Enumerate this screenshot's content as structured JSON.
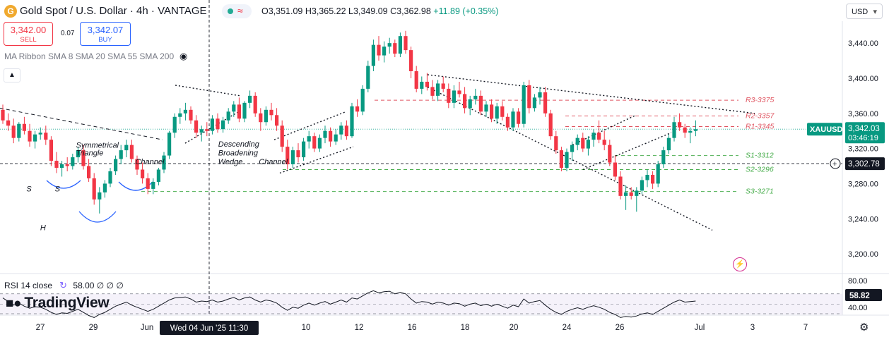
{
  "header": {
    "symbol_logo": "G",
    "symbol_title": "Gold Spot / U.S. Dollar · 4h · VANTAGE",
    "ohlc": "O3,351.09 H3,365.22 L3,349.09 C3,362.98",
    "change": "+11.89 (+0.35%)",
    "currency": "USD",
    "sell_price": "3,342.00",
    "sell_label": "SELL",
    "spread": "0.07",
    "buy_price": "3,342.07",
    "buy_label": "BUY",
    "indicator_label": "MA Ribbon SMA 8 SMA 20 SMA 55 SMA 200",
    "rsi_label": "RSI 14 close",
    "rsi_value": "58.00",
    "rsi_extra": "∅ ∅ ∅",
    "brand": "TradingView"
  },
  "icons": [
    "eye-icon",
    "chevron-up-icon",
    "gear-icon",
    "flash-icon",
    "plus-circle-icon",
    "green-dot-icon",
    "wave-icon"
  ],
  "colors": {
    "up": "#089981",
    "down": "#f23645",
    "resistance": "#e05561",
    "support": "#4caf50",
    "accent": "#2962ff"
  },
  "chart_data": {
    "type": "candlestick",
    "price_axis": {
      "ticks": [
        3440,
        3400,
        3360,
        3320,
        3280,
        3240,
        3200
      ],
      "tick_labels": [
        "3,440.00",
        "3,400.00",
        "3,360.00",
        "3,320.00",
        "3,280.00",
        "3,240.00",
        "3,200.00"
      ],
      "range": [
        3180,
        3465
      ]
    },
    "time_axis": {
      "labels": [
        "27",
        "29",
        "Jun",
        "10",
        "12",
        "16",
        "18",
        "20",
        "24",
        "26",
        "Jul",
        "3",
        "7"
      ],
      "crosshair_label": "Wed 04 Jun '25   11:30"
    },
    "price_badges": {
      "symbol": "XAUUSD",
      "last_price": "3,342.03",
      "countdown": "03:46:19",
      "crosshair_price": "3,302.78"
    },
    "levels": [
      {
        "label": "R3-3375",
        "value": 3375,
        "kind": "resistance"
      },
      {
        "label": "R2-3357",
        "value": 3357,
        "kind": "resistance"
      },
      {
        "label": "R1-3345",
        "value": 3345,
        "kind": "resistance"
      },
      {
        "label": "S1-3312",
        "value": 3312,
        "kind": "support"
      },
      {
        "label": "S2-3296",
        "value": 3296,
        "kind": "support"
      },
      {
        "label": "S3-3271",
        "value": 3271,
        "kind": "support"
      }
    ],
    "annotations": [
      {
        "text": "Symmetrical",
        "time": 0.09,
        "price": 3321
      },
      {
        "text": "Triangle",
        "time": 0.09,
        "price": 3312
      },
      {
        "text": "Channel",
        "time": 0.163,
        "price": 3302
      },
      {
        "text": "Descending",
        "time": 0.265,
        "price": 3322
      },
      {
        "text": "Broadening",
        "time": 0.265,
        "price": 3312
      },
      {
        "text": "Wedge",
        "time": 0.265,
        "price": 3302
      },
      {
        "text": "Channel",
        "time": 0.315,
        "price": 3302
      },
      {
        "text": "S",
        "time": 0.029,
        "price": 3271
      },
      {
        "text": "H",
        "time": 0.046,
        "price": 3227
      },
      {
        "text": "S",
        "time": 0.064,
        "price": 3271
      }
    ],
    "candles": [
      [
        3364,
        3370,
        3348,
        3352
      ],
      [
        3352,
        3360,
        3340,
        3346
      ],
      [
        3346,
        3354,
        3326,
        3332
      ],
      [
        3332,
        3350,
        3328,
        3348
      ],
      [
        3348,
        3356,
        3336,
        3340
      ],
      [
        3340,
        3348,
        3322,
        3328
      ],
      [
        3328,
        3340,
        3320,
        3336
      ],
      [
        3336,
        3344,
        3330,
        3338
      ],
      [
        3338,
        3346,
        3324,
        3330
      ],
      [
        3330,
        3334,
        3300,
        3306
      ],
      [
        3306,
        3316,
        3292,
        3298
      ],
      [
        3298,
        3306,
        3288,
        3302
      ],
      [
        3302,
        3310,
        3294,
        3300
      ],
      [
        3300,
        3314,
        3296,
        3310
      ],
      [
        3310,
        3322,
        3304,
        3318
      ],
      [
        3318,
        3324,
        3296,
        3300
      ],
      [
        3300,
        3308,
        3282,
        3286
      ],
      [
        3286,
        3292,
        3256,
        3262
      ],
      [
        3262,
        3276,
        3246,
        3270
      ],
      [
        3270,
        3284,
        3264,
        3280
      ],
      [
        3280,
        3298,
        3276,
        3294
      ],
      [
        3294,
        3312,
        3290,
        3308
      ],
      [
        3308,
        3324,
        3302,
        3318
      ],
      [
        3318,
        3330,
        3310,
        3324
      ],
      [
        3324,
        3330,
        3304,
        3308
      ],
      [
        3308,
        3312,
        3290,
        3296
      ],
      [
        3296,
        3304,
        3280,
        3286
      ],
      [
        3286,
        3292,
        3268,
        3274
      ],
      [
        3274,
        3286,
        3268,
        3282
      ],
      [
        3282,
        3298,
        3278,
        3296
      ],
      [
        3296,
        3316,
        3292,
        3312
      ],
      [
        3312,
        3340,
        3308,
        3338
      ],
      [
        3338,
        3360,
        3332,
        3356
      ],
      [
        3356,
        3366,
        3348,
        3360
      ],
      [
        3360,
        3372,
        3352,
        3364
      ],
      [
        3364,
        3368,
        3348,
        3352
      ],
      [
        3352,
        3358,
        3332,
        3338
      ],
      [
        3338,
        3346,
        3328,
        3342
      ],
      [
        3342,
        3350,
        3334,
        3340
      ],
      [
        3340,
        3358,
        3336,
        3354
      ],
      [
        3354,
        3360,
        3338,
        3342
      ],
      [
        3342,
        3356,
        3338,
        3352
      ],
      [
        3352,
        3366,
        3348,
        3362
      ],
      [
        3362,
        3374,
        3356,
        3370
      ],
      [
        3370,
        3378,
        3350,
        3354
      ],
      [
        3354,
        3374,
        3350,
        3372
      ],
      [
        3372,
        3386,
        3366,
        3380
      ],
      [
        3380,
        3384,
        3356,
        3360
      ],
      [
        3360,
        3366,
        3340,
        3350
      ],
      [
        3350,
        3368,
        3346,
        3364
      ],
      [
        3364,
        3372,
        3352,
        3358
      ],
      [
        3358,
        3366,
        3340,
        3346
      ],
      [
        3346,
        3352,
        3316,
        3322
      ],
      [
        3322,
        3330,
        3296,
        3302
      ],
      [
        3302,
        3322,
        3298,
        3318
      ],
      [
        3318,
        3326,
        3304,
        3310
      ],
      [
        3310,
        3332,
        3306,
        3328
      ],
      [
        3328,
        3340,
        3320,
        3334
      ],
      [
        3334,
        3338,
        3316,
        3320
      ],
      [
        3320,
        3336,
        3316,
        3332
      ],
      [
        3332,
        3346,
        3326,
        3340
      ],
      [
        3340,
        3344,
        3322,
        3328
      ],
      [
        3328,
        3342,
        3324,
        3336
      ],
      [
        3336,
        3350,
        3330,
        3346
      ],
      [
        3346,
        3352,
        3330,
        3334
      ],
      [
        3334,
        3372,
        3332,
        3368
      ],
      [
        3368,
        3376,
        3356,
        3362
      ],
      [
        3362,
        3392,
        3358,
        3388
      ],
      [
        3388,
        3420,
        3384,
        3414
      ],
      [
        3414,
        3444,
        3408,
        3438
      ],
      [
        3438,
        3448,
        3420,
        3426
      ],
      [
        3426,
        3442,
        3418,
        3436
      ],
      [
        3436,
        3446,
        3428,
        3440
      ],
      [
        3440,
        3444,
        3424,
        3428
      ],
      [
        3428,
        3452,
        3424,
        3448
      ],
      [
        3448,
        3454,
        3428,
        3432
      ],
      [
        3432,
        3436,
        3400,
        3408
      ],
      [
        3408,
        3414,
        3384,
        3388
      ],
      [
        3388,
        3402,
        3382,
        3396
      ],
      [
        3396,
        3406,
        3386,
        3390
      ],
      [
        3390,
        3398,
        3376,
        3380
      ],
      [
        3380,
        3398,
        3374,
        3394
      ],
      [
        3394,
        3402,
        3384,
        3388
      ],
      [
        3388,
        3394,
        3366,
        3372
      ],
      [
        3372,
        3392,
        3366,
        3386
      ],
      [
        3386,
        3396,
        3378,
        3382
      ],
      [
        3382,
        3390,
        3360,
        3366
      ],
      [
        3366,
        3380,
        3358,
        3376
      ],
      [
        3376,
        3388,
        3370,
        3380
      ],
      [
        3380,
        3386,
        3358,
        3362
      ],
      [
        3362,
        3374,
        3356,
        3370
      ],
      [
        3370,
        3376,
        3350,
        3354
      ],
      [
        3354,
        3372,
        3348,
        3368
      ],
      [
        3368,
        3374,
        3352,
        3356
      ],
      [
        3356,
        3360,
        3340,
        3344
      ],
      [
        3344,
        3366,
        3340,
        3362
      ],
      [
        3362,
        3366,
        3344,
        3348
      ],
      [
        3348,
        3396,
        3344,
        3392
      ],
      [
        3392,
        3398,
        3360,
        3366
      ],
      [
        3366,
        3382,
        3362,
        3378
      ],
      [
        3378,
        3390,
        3370,
        3384
      ],
      [
        3384,
        3390,
        3356,
        3360
      ],
      [
        3360,
        3364,
        3330,
        3334
      ],
      [
        3334,
        3340,
        3314,
        3318
      ],
      [
        3318,
        3322,
        3294,
        3298
      ],
      [
        3298,
        3320,
        3294,
        3316
      ],
      [
        3316,
        3328,
        3306,
        3324
      ],
      [
        3324,
        3336,
        3318,
        3332
      ],
      [
        3332,
        3338,
        3316,
        3320
      ],
      [
        3320,
        3334,
        3312,
        3330
      ],
      [
        3330,
        3342,
        3322,
        3338
      ],
      [
        3338,
        3352,
        3326,
        3330
      ],
      [
        3330,
        3340,
        3318,
        3324
      ],
      [
        3324,
        3330,
        3300,
        3304
      ],
      [
        3304,
        3312,
        3284,
        3288
      ],
      [
        3288,
        3294,
        3262,
        3266
      ],
      [
        3266,
        3278,
        3250,
        3270
      ],
      [
        3270,
        3276,
        3262,
        3266
      ],
      [
        3266,
        3276,
        3248,
        3272
      ],
      [
        3272,
        3288,
        3268,
        3284
      ],
      [
        3284,
        3296,
        3276,
        3290
      ],
      [
        3290,
        3294,
        3274,
        3280
      ],
      [
        3280,
        3306,
        3276,
        3302
      ],
      [
        3302,
        3322,
        3298,
        3318
      ],
      [
        3318,
        3336,
        3314,
        3332
      ],
      [
        3332,
        3356,
        3328,
        3350
      ],
      [
        3350,
        3360,
        3340,
        3344
      ],
      [
        3344,
        3348,
        3332,
        3338
      ],
      [
        3338,
        3344,
        3326,
        3340
      ],
      [
        3340,
        3352,
        3334,
        3342
      ]
    ],
    "rsi": {
      "ticks": [
        80,
        40
      ],
      "last": "58.82",
      "values": [
        62,
        55,
        48,
        52,
        46,
        42,
        45,
        44,
        40,
        34,
        30,
        33,
        32,
        36,
        40,
        34,
        28,
        24,
        30,
        34,
        40,
        46,
        50,
        54,
        48,
        44,
        40,
        36,
        40,
        46,
        52,
        58,
        62,
        63,
        64,
        60,
        54,
        56,
        55,
        58,
        54,
        56,
        60,
        63,
        58,
        62,
        64,
        58,
        54,
        58,
        56,
        52,
        44,
        38,
        44,
        42,
        48,
        52,
        48,
        52,
        55,
        50,
        54,
        58,
        54,
        62,
        60,
        66,
        72,
        76,
        72,
        74,
        75,
        70,
        73,
        70,
        60,
        52,
        55,
        54,
        50,
        54,
        52,
        48,
        52,
        51,
        46,
        50,
        52,
        47,
        50,
        46,
        50,
        46,
        42,
        48,
        45,
        60,
        52,
        55,
        57,
        48,
        40,
        34,
        30,
        36,
        40,
        43,
        40,
        44,
        47,
        44,
        40,
        34,
        30,
        24,
        26,
        25,
        27,
        31,
        33,
        30,
        36,
        42,
        48,
        54,
        58,
        54,
        55,
        56
      ]
    }
  }
}
